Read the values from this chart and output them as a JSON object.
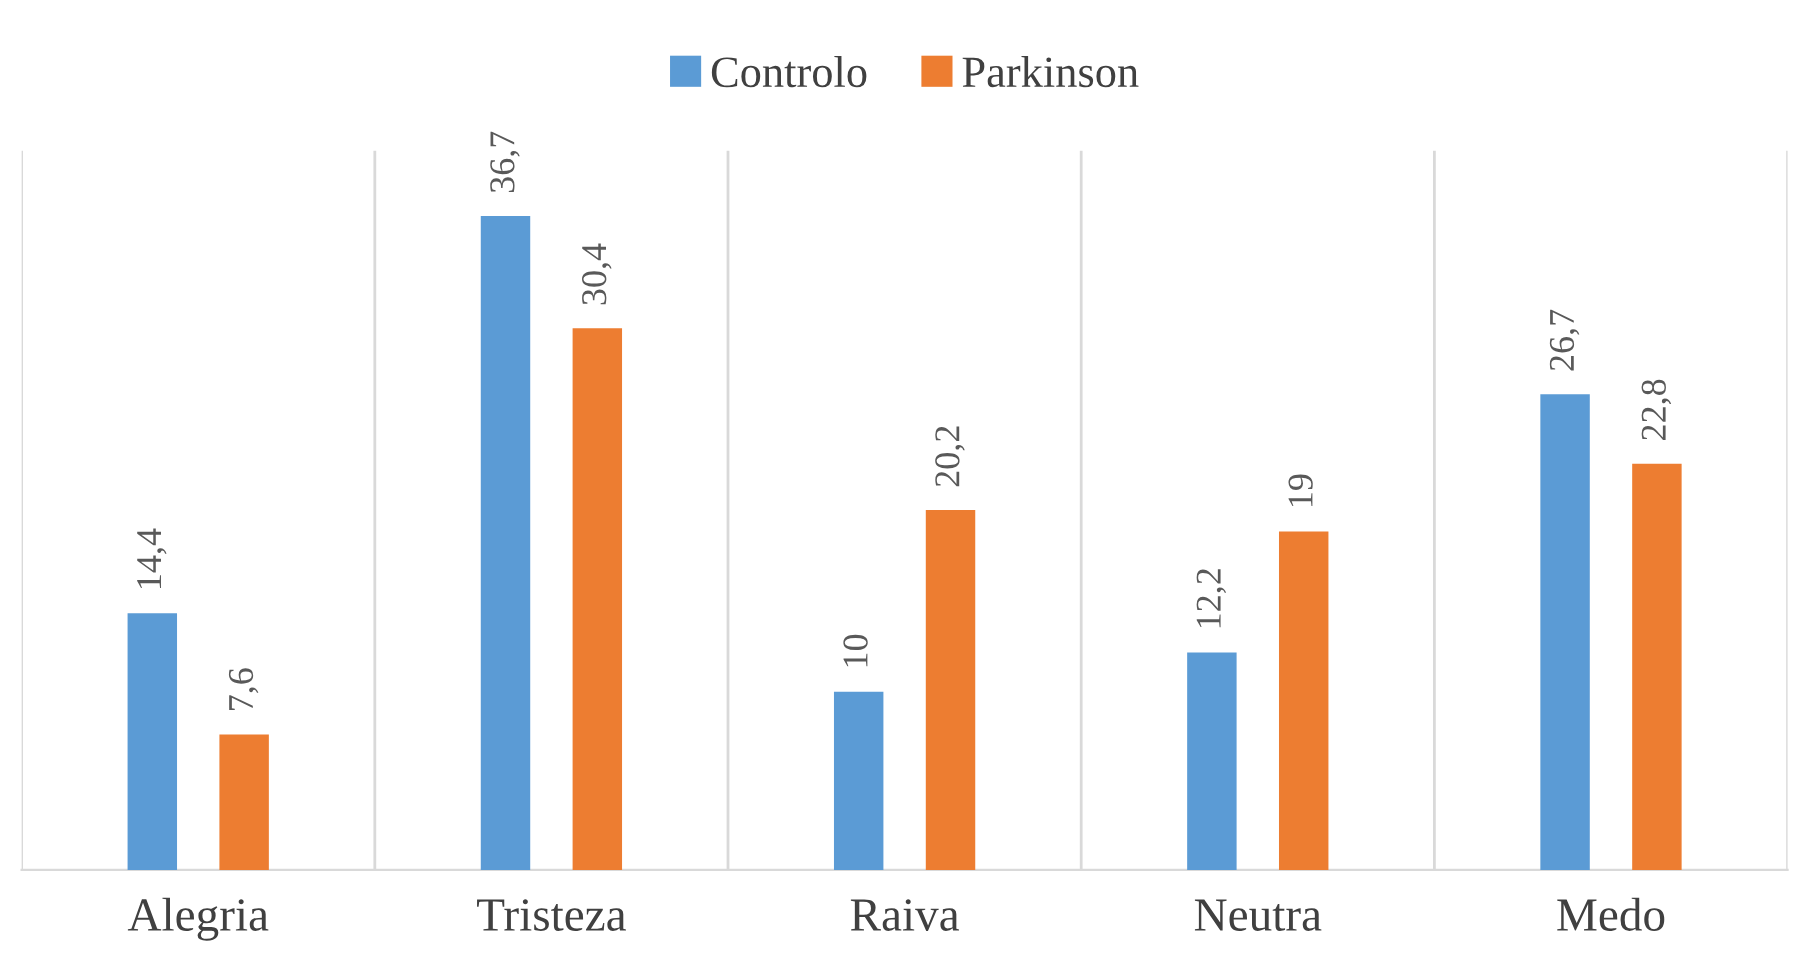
{
  "chart_data": {
    "type": "bar",
    "categories": [
      "Alegria",
      "Tristeza",
      "Raiva",
      "Neutra",
      "Medo"
    ],
    "series": [
      {
        "name": "Controlo",
        "color": "#5b9bd5",
        "values": [
          14.4,
          36.7,
          10,
          12.2,
          26.7
        ],
        "value_labels": [
          "14,4",
          "36,7",
          "10",
          "12,2",
          "26,7"
        ]
      },
      {
        "name": "Parkinson",
        "color": "#ed7d31",
        "values": [
          7.6,
          30.4,
          20.2,
          19,
          22.8
        ],
        "value_labels": [
          "7,6",
          "30,4",
          "20,2",
          "19",
          "22,8"
        ]
      }
    ],
    "grid": "x",
    "legend": "top"
  }
}
